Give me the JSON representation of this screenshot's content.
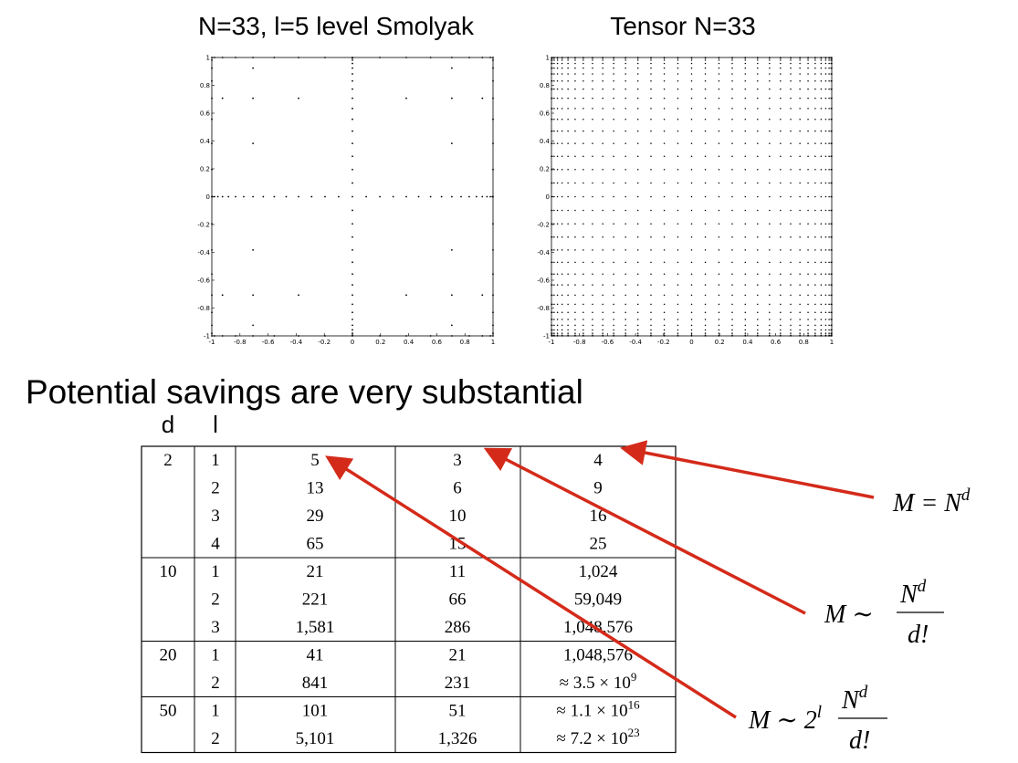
{
  "chart_data": [
    {
      "type": "scatter",
      "title": "N=33, l=5 level Smolyak",
      "x": [
        1,
        0.995,
        0.981,
        0.957,
        0.924,
        0.882,
        0.831,
        0.773,
        0.707,
        0.634,
        0.556,
        0.471,
        0.383,
        0.29,
        0.195,
        0.098,
        0,
        -0.098,
        -0.195,
        -0.29,
        -0.383,
        -0.471,
        -0.556,
        -0.634,
        -0.707,
        -0.773,
        -0.831,
        -0.882,
        -0.924,
        -0.957,
        -0.981,
        -0.995,
        -1,
        0,
        0,
        0,
        0,
        0,
        0,
        0,
        0,
        0,
        0,
        0,
        0,
        0,
        0,
        0,
        0,
        0,
        0,
        0,
        0,
        0,
        0,
        0,
        0,
        0,
        0,
        0,
        0,
        0,
        0,
        0,
        0,
        1,
        0.981,
        0.924,
        0.831,
        0.707,
        0.556,
        0.383,
        0.195,
        -0.195,
        -0.383,
        -0.556,
        -0.707,
        -0.831,
        -0.924,
        -0.981,
        -1,
        1,
        0.981,
        0.924,
        0.831,
        0.707,
        0.556,
        0.383,
        0.195,
        -0.195,
        -0.383,
        -0.556,
        -0.707,
        -0.831,
        -0.924,
        -0.981,
        -1,
        1,
        0.924,
        0.707,
        0.383,
        -0.383,
        -0.707,
        -0.924,
        -1,
        1,
        0.924,
        0.707,
        0.383,
        -0.383,
        -0.707,
        -0.924,
        -1,
        1,
        0.707,
        -0.707,
        -1,
        1,
        0.707,
        -0.707,
        -1,
        1,
        0.707,
        -0.707,
        -1,
        1,
        0.707,
        -0.707,
        -1,
        1,
        -1,
        1,
        -1,
        1,
        -1,
        1,
        -1,
        1,
        -1,
        1,
        -1,
        1,
        -1,
        1,
        -1
      ],
      "y": [
        0,
        0,
        0,
        0,
        0,
        0,
        0,
        0,
        0,
        0,
        0,
        0,
        0,
        0,
        0,
        0,
        0,
        0,
        0,
        0,
        0,
        0,
        0,
        0,
        0,
        0,
        0,
        0,
        0,
        0,
        0,
        0,
        0,
        1,
        0.995,
        0.981,
        0.957,
        0.924,
        0.882,
        0.831,
        0.773,
        0.707,
        0.634,
        0.556,
        0.471,
        0.383,
        0.29,
        0.195,
        0.098,
        -0.098,
        -0.195,
        -0.29,
        -0.383,
        -0.471,
        -0.556,
        -0.634,
        -0.707,
        -0.773,
        -0.831,
        -0.882,
        -0.924,
        -0.957,
        -0.981,
        -0.995,
        -1,
        1,
        1,
        1,
        1,
        1,
        1,
        1,
        1,
        1,
        1,
        1,
        1,
        1,
        1,
        1,
        1,
        -1,
        -1,
        -1,
        -1,
        -1,
        -1,
        -1,
        -1,
        -1,
        -1,
        -1,
        -1,
        -1,
        -1,
        -1,
        -1,
        0.707,
        0.707,
        0.707,
        0.707,
        0.707,
        0.707,
        0.707,
        0.707,
        -0.707,
        -0.707,
        -0.707,
        -0.707,
        -0.707,
        -0.707,
        -0.707,
        -0.707,
        0.924,
        0.924,
        0.924,
        0.924,
        0.383,
        0.383,
        0.383,
        0.383,
        -0.383,
        -0.383,
        -0.383,
        -0.383,
        -0.924,
        -0.924,
        -0.924,
        -0.924,
        0.981,
        0.981,
        0.831,
        0.831,
        0.556,
        0.556,
        0.195,
        0.195,
        -0.195,
        -0.195,
        -0.556,
        -0.556,
        -0.831,
        -0.831,
        -0.981,
        -0.981
      ],
      "color": "#000000",
      "xlim": [
        -1,
        1
      ],
      "ylim": [
        -1,
        1
      ],
      "xticks": [
        -1,
        -0.8,
        -0.6,
        -0.4,
        -0.2,
        0,
        0.2,
        0.4,
        0.6,
        0.8,
        1
      ],
      "yticks": [
        -1,
        -0.8,
        -0.6,
        -0.4,
        -0.2,
        0,
        0.2,
        0.4,
        0.6,
        0.8,
        1
      ]
    },
    {
      "type": "grid",
      "title": "Tensor N=33",
      "nodes": [
        1,
        0.995,
        0.981,
        0.957,
        0.924,
        0.882,
        0.831,
        0.773,
        0.707,
        0.634,
        0.556,
        0.471,
        0.383,
        0.29,
        0.195,
        0.098,
        0,
        -0.098,
        -0.195,
        -0.29,
        -0.383,
        -0.471,
        -0.556,
        -0.634,
        -0.707,
        -0.773,
        -0.831,
        -0.882,
        -0.924,
        -0.957,
        -0.981,
        -0.995,
        -1
      ],
      "color": "#000000",
      "xlim": [
        -1,
        1
      ],
      "ylim": [
        -1,
        1
      ],
      "xticks": [
        -1,
        -0.8,
        -0.6,
        -0.4,
        -0.2,
        0,
        0.2,
        0.4,
        0.6,
        0.8,
        1
      ],
      "yticks": [
        -1,
        -0.8,
        -0.6,
        -0.4,
        -0.2,
        0,
        0.2,
        0.4,
        0.6,
        0.8,
        1
      ]
    }
  ],
  "heading": "Potential savings are very substantial",
  "table": {
    "header": [
      "d",
      "l"
    ],
    "groups": [
      {
        "d": "2",
        "rows": [
          [
            "1",
            "5",
            "3",
            "4"
          ],
          [
            "2",
            "13",
            "6",
            "9"
          ],
          [
            "3",
            "29",
            "10",
            "16"
          ],
          [
            "4",
            "65",
            "15",
            "25"
          ]
        ]
      },
      {
        "d": "10",
        "rows": [
          [
            "1",
            "21",
            "11",
            "1,024"
          ],
          [
            "2",
            "221",
            "66",
            "59,049"
          ],
          [
            "3",
            "1,581",
            "286",
            "1,048,576"
          ]
        ]
      },
      {
        "d": "20",
        "rows": [
          [
            "1",
            "41",
            "21",
            "1,048,576"
          ],
          [
            "2",
            "841",
            "231",
            {
              "text": "≈ 3.5 × 10",
              "sup": "9"
            }
          ]
        ]
      },
      {
        "d": "50",
        "rows": [
          [
            "1",
            "101",
            "51",
            {
              "text": "≈ 1.1 × 10",
              "sup": "16"
            }
          ],
          [
            "2",
            "5,101",
            "1,326",
            {
              "text": "≈ 7.2 × 10",
              "sup": "23"
            }
          ]
        ]
      }
    ]
  },
  "formulas": [
    {
      "lhs": "M = N",
      "sup": "d"
    },
    {
      "lhs": "M ∼",
      "num": "N",
      "num_sup": "d",
      "den": "d!"
    },
    {
      "lhs": "M ∼ 2",
      "lhs_sup": "l",
      "num": "N",
      "num_sup": "d",
      "den": "d!"
    }
  ]
}
